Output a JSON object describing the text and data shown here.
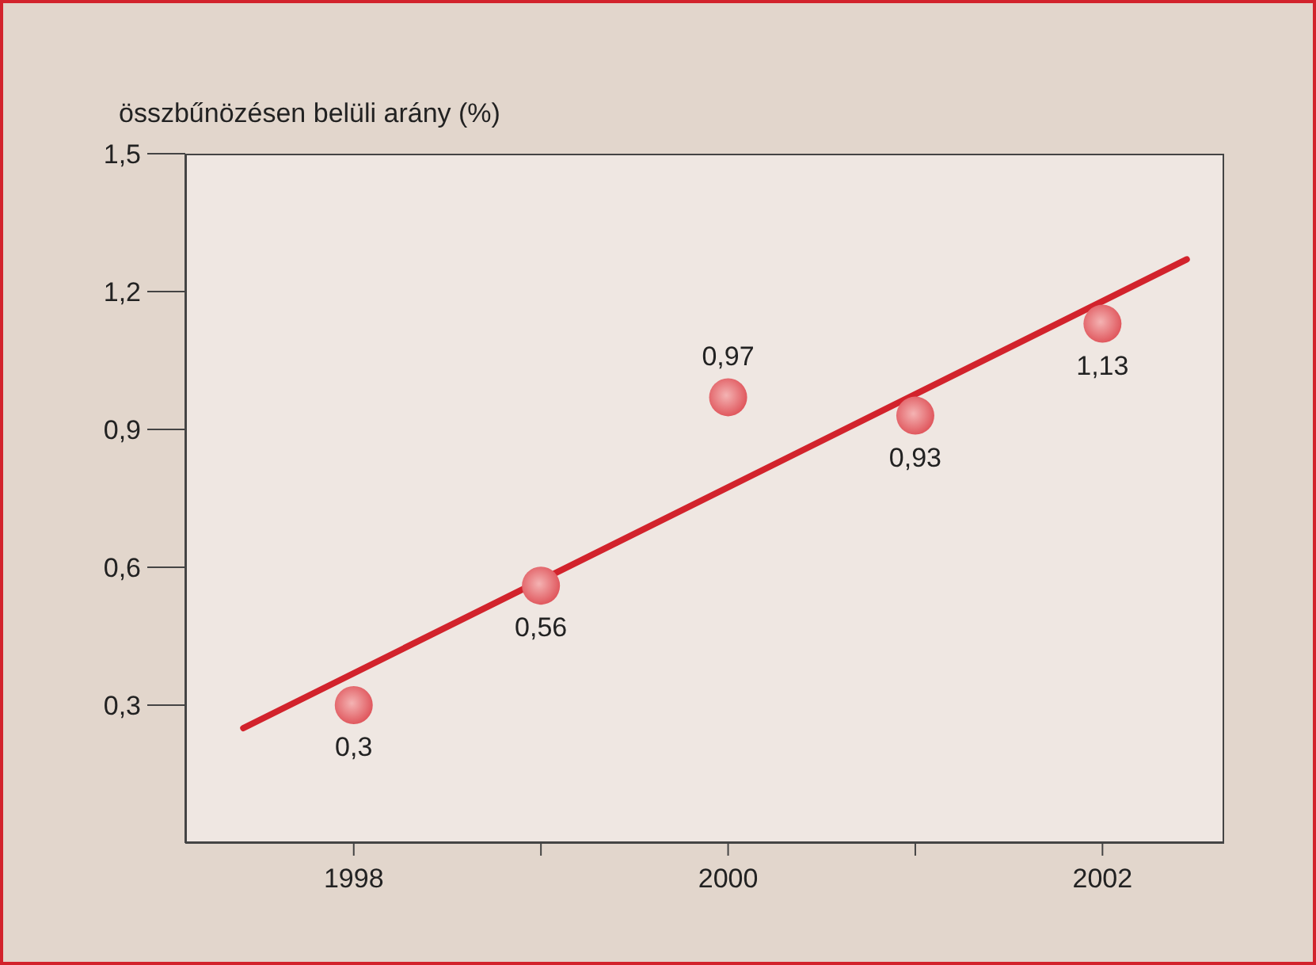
{
  "chart_data": {
    "type": "scatter",
    "ylabel": "összbűnözésen belüli arány (%)",
    "x": [
      1998,
      1999,
      2000,
      2001,
      2002
    ],
    "xlim": [
      1997.1,
      2002.65
    ],
    "xticks": [
      1998,
      {
        "value": 1999,
        "label": null
      },
      2000,
      {
        "value": 2001,
        "label": null
      },
      2002
    ],
    "ylim": [
      0,
      1.5
    ],
    "yticks": [
      {
        "value": 0.3,
        "label": "0,3"
      },
      {
        "value": 0.6,
        "label": "0,6"
      },
      {
        "value": 0.9,
        "label": "0,9"
      },
      {
        "value": 1.2,
        "label": "1,2"
      },
      {
        "value": 1.5,
        "label": "1,5"
      }
    ],
    "grid": false,
    "legend": false,
    "series": [
      {
        "marker": "circle",
        "color": "#e0585e",
        "values": [
          0.3,
          0.56,
          0.97,
          0.93,
          1.13
        ],
        "value_labels": [
          "0,3",
          "0,56",
          "0,97",
          "0,93",
          "1,13"
        ]
      },
      {
        "type": "line",
        "color": "#d2232c",
        "x": [
          1997.41,
          2002.45
        ],
        "values": [
          0.25,
          1.27
        ],
        "line_style": "solid",
        "marker": "none"
      }
    ]
  }
}
